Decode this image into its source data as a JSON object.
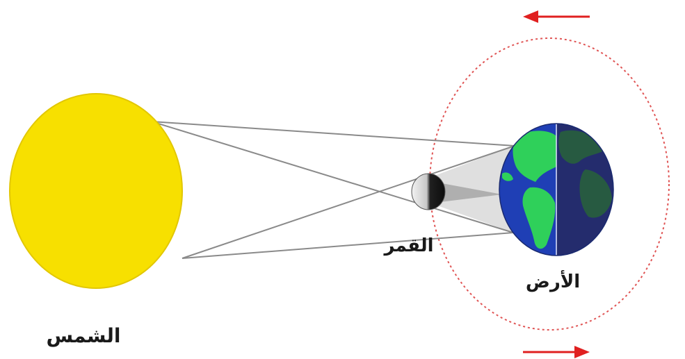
{
  "labels": {
    "sun": "الشمس",
    "moon": "القمر",
    "earth": "الأرض"
  },
  "colors": {
    "sun": "#f7e000",
    "sun_edge": "#e2c700",
    "earth_ocean": "#1f3fb5",
    "earth_land": "#2fd05a",
    "earth_night_ocean": "#2a3480",
    "earth_night_land": "#2f7a3c",
    "moon_lit": "#e8e8e8",
    "moon_dark": "#151515",
    "orbit": "#e05555",
    "arrow": "#e02020",
    "rays": "#8a8a8a",
    "shadow": "#b5b5b5"
  },
  "icons": {
    "orbit_arrow_top": "arrow-left-icon",
    "orbit_arrow_bottom": "arrow-right-icon"
  }
}
